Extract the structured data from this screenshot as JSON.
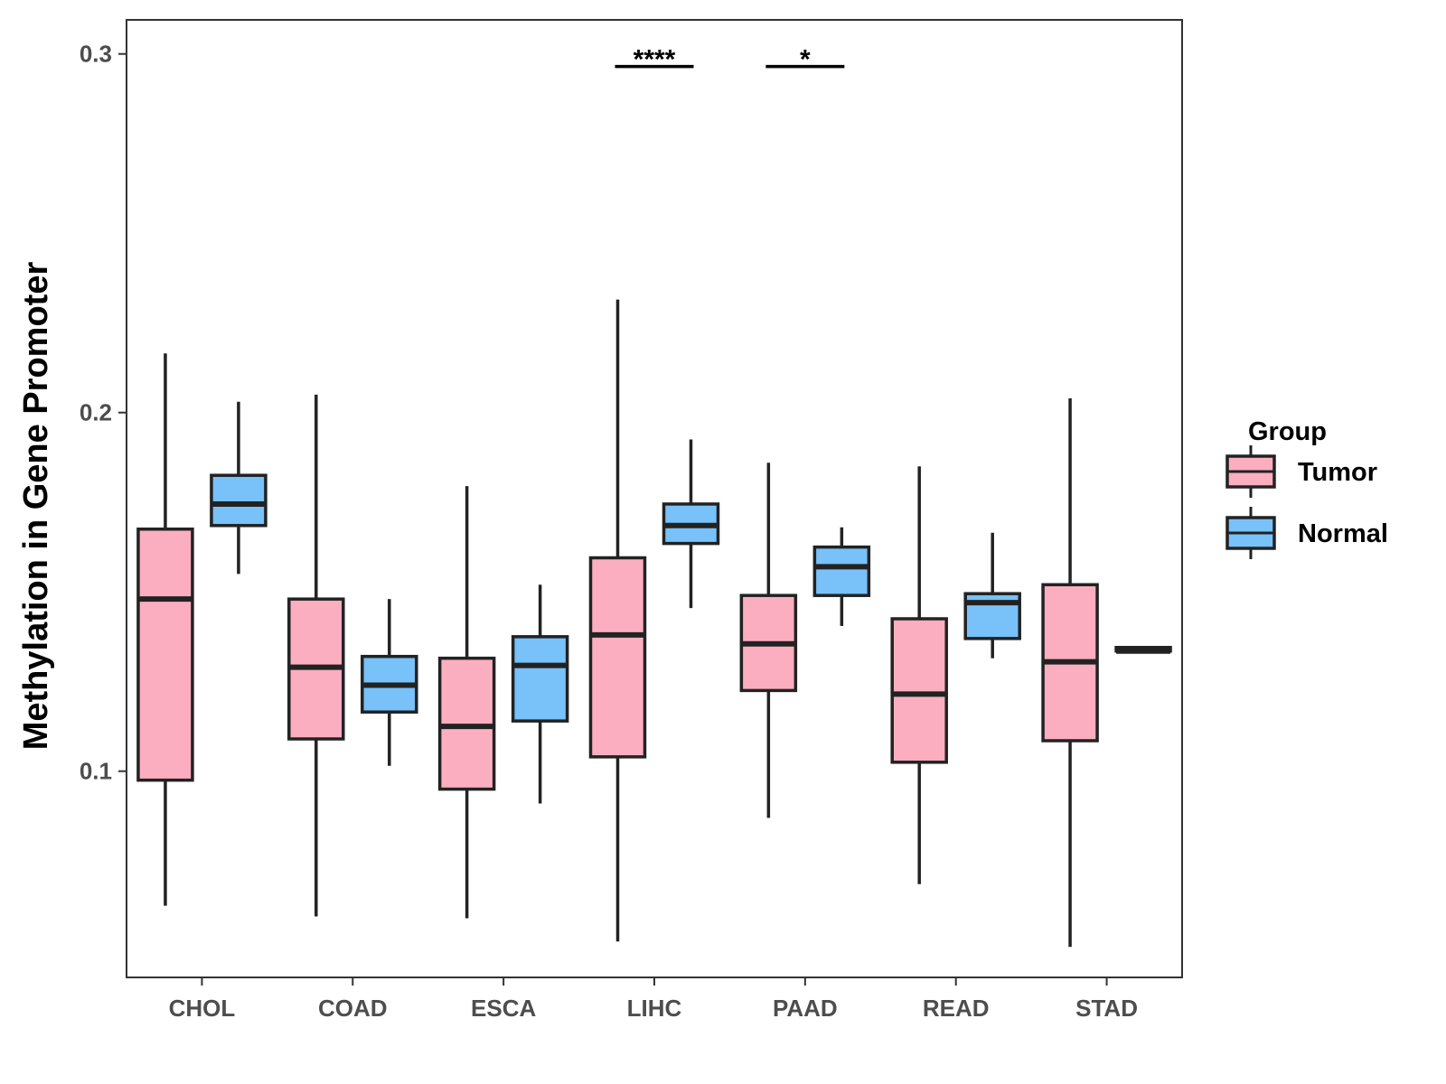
{
  "chart_data": {
    "type": "boxplot",
    "ylabel": "Methylation in Gene Promoter",
    "xlabel": "",
    "ylim": [
      0.0425,
      0.3095
    ],
    "yticks": [
      0.1,
      0.2,
      0.3
    ],
    "ytick_labels": [
      "0.1",
      "0.2",
      "0.3"
    ],
    "categories": [
      "CHOL",
      "COAD",
      "ESCA",
      "LIHC",
      "PAAD",
      "READ",
      "STAD"
    ],
    "legend": {
      "title": "Group",
      "position": "right",
      "entries": [
        {
          "name": "Tumor",
          "color": "#FBAEC0"
        },
        {
          "name": "Normal",
          "color": "#78C1F9"
        }
      ]
    },
    "series": [
      {
        "name": "Tumor",
        "color": "#FBAEC0",
        "boxes": [
          {
            "category": "CHOL",
            "min": 0.0625,
            "q1": 0.0975,
            "median": 0.148,
            "q3": 0.1675,
            "max": 0.2165
          },
          {
            "category": "COAD",
            "min": 0.0595,
            "q1": 0.109,
            "median": 0.129,
            "q3": 0.148,
            "max": 0.205
          },
          {
            "category": "ESCA",
            "min": 0.059,
            "q1": 0.095,
            "median": 0.1125,
            "q3": 0.1315,
            "max": 0.1795
          },
          {
            "category": "LIHC",
            "min": 0.0525,
            "q1": 0.104,
            "median": 0.138,
            "q3": 0.1595,
            "max": 0.2315
          },
          {
            "category": "PAAD",
            "min": 0.087,
            "q1": 0.1225,
            "median": 0.1355,
            "q3": 0.149,
            "max": 0.186
          },
          {
            "category": "READ",
            "min": 0.0685,
            "q1": 0.1025,
            "median": 0.1215,
            "q3": 0.1425,
            "max": 0.185
          },
          {
            "category": "STAD",
            "min": 0.051,
            "q1": 0.1085,
            "median": 0.1305,
            "q3": 0.152,
            "max": 0.204
          }
        ]
      },
      {
        "name": "Normal",
        "color": "#78C1F9",
        "boxes": [
          {
            "category": "CHOL",
            "min": 0.155,
            "q1": 0.1685,
            "median": 0.1745,
            "q3": 0.1825,
            "max": 0.203
          },
          {
            "category": "COAD",
            "min": 0.1015,
            "q1": 0.1165,
            "median": 0.124,
            "q3": 0.132,
            "max": 0.148
          },
          {
            "category": "ESCA",
            "min": 0.091,
            "q1": 0.114,
            "median": 0.1295,
            "q3": 0.1375,
            "max": 0.152
          },
          {
            "category": "LIHC",
            "min": 0.1455,
            "q1": 0.1635,
            "median": 0.1685,
            "q3": 0.1745,
            "max": 0.1925
          },
          {
            "category": "PAAD",
            "min": 0.1405,
            "q1": 0.149,
            "median": 0.157,
            "q3": 0.1625,
            "max": 0.168
          },
          {
            "category": "READ",
            "min": 0.1315,
            "q1": 0.137,
            "median": 0.147,
            "q3": 0.1495,
            "max": 0.1665
          },
          {
            "category": "STAD",
            "min": 0.1335,
            "q1": 0.1335,
            "median": 0.1335,
            "q3": 0.1345,
            "max": 0.1345
          }
        ]
      }
    ],
    "annotations": [
      {
        "category": "LIHC",
        "label": "****",
        "y": 0.2965
      },
      {
        "category": "PAAD",
        "label": "*",
        "y": 0.2965
      }
    ],
    "grid": false
  }
}
